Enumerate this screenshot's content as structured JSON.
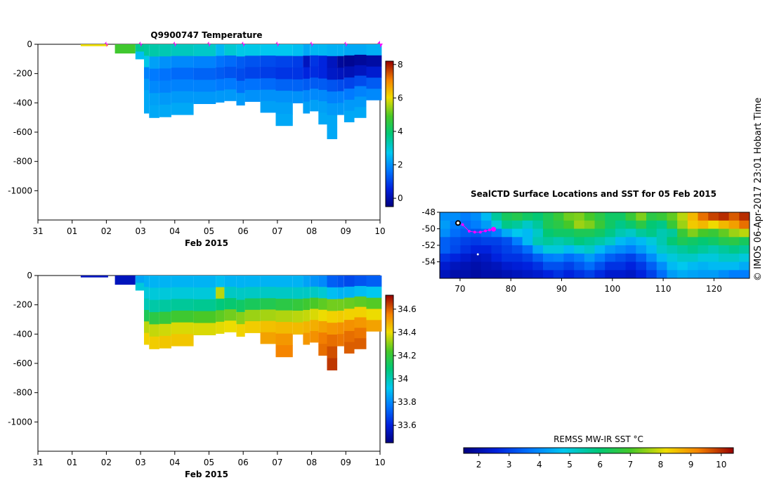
{
  "side_label": "© IMOS 06-Apr-2017 23:01 Hobart Time",
  "chart_data": [
    {
      "type": "heatmap",
      "id": "temperature",
      "title": "Q9900747  Temperature",
      "xlabel": "Feb 2015",
      "x_ticks": [
        "31",
        "01",
        "02",
        "03",
        "04",
        "05",
        "06",
        "07",
        "08",
        "09",
        "10"
      ],
      "y_ticks": [
        0,
        -200,
        -400,
        -600,
        -800,
        -1000
      ],
      "ylim": [
        -1200,
        0
      ],
      "xlim_days": [
        0,
        10
      ],
      "colorbar": {
        "ticks": [
          0,
          2,
          4,
          6,
          8
        ],
        "range": [
          -0.5,
          8.2
        ]
      },
      "profile_marker_days": [
        2,
        3,
        4,
        5,
        6,
        7,
        8,
        9,
        10
      ],
      "profiles": [
        {
          "start": 1.25,
          "end": 2.05,
          "depth": 10,
          "values": [
            6.0
          ]
        },
        {
          "start": 2.25,
          "end": 2.85,
          "depth": 60,
          "values": [
            4.8
          ]
        },
        {
          "start": 2.85,
          "end": 3.1,
          "depth": 100,
          "values": [
            3.6,
            2.6
          ]
        },
        {
          "start": 3.1,
          "end": 3.25,
          "depth": 470,
          "values": [
            3.5,
            2.8,
            1.8,
            2.1,
            2.3,
            2.3
          ]
        },
        {
          "start": 3.25,
          "end": 3.55,
          "depth": 500,
          "values": [
            3.4,
            2.2,
            1.7,
            1.9,
            2.2,
            2.3
          ]
        },
        {
          "start": 3.55,
          "end": 3.9,
          "depth": 495,
          "values": [
            3.3,
            2.0,
            1.6,
            1.8,
            2.1,
            2.3
          ]
        },
        {
          "start": 3.9,
          "end": 4.55,
          "depth": 480,
          "values": [
            3.2,
            1.9,
            1.5,
            1.8,
            2.1,
            2.3
          ]
        },
        {
          "start": 4.55,
          "end": 5.2,
          "depth": 405,
          "values": [
            3.1,
            1.8,
            1.4,
            1.8,
            2.1
          ]
        },
        {
          "start": 5.2,
          "end": 5.45,
          "depth": 395,
          "values": [
            2.5,
            1.6,
            1.3,
            1.7,
            2.1
          ]
        },
        {
          "start": 5.45,
          "end": 5.8,
          "depth": 385,
          "values": [
            3.0,
            1.5,
            1.2,
            1.7,
            2.1
          ]
        },
        {
          "start": 5.8,
          "end": 6.05,
          "depth": 415,
          "values": [
            2.8,
            1.3,
            1.1,
            1.6,
            2.1
          ]
        },
        {
          "start": 6.05,
          "end": 6.5,
          "depth": 390,
          "values": [
            2.8,
            1.2,
            1.0,
            1.6,
            2.0
          ]
        },
        {
          "start": 6.5,
          "end": 6.95,
          "depth": 465,
          "values": [
            2.7,
            1.1,
            0.9,
            1.5,
            2.0,
            2.2
          ]
        },
        {
          "start": 6.95,
          "end": 7.45,
          "depth": 555,
          "values": [
            2.7,
            1.0,
            0.8,
            1.4,
            2.0,
            2.2,
            2.3
          ]
        },
        {
          "start": 7.45,
          "end": 7.75,
          "depth": 400,
          "values": [
            2.6,
            0.9,
            0.8,
            1.4,
            2.0
          ]
        },
        {
          "start": 7.75,
          "end": 7.95,
          "depth": 470,
          "values": [
            2.3,
            0.2,
            0.6,
            1.3,
            1.9,
            2.2
          ]
        },
        {
          "start": 7.95,
          "end": 8.2,
          "depth": 455,
          "values": [
            2.5,
            0.8,
            0.7,
            1.3,
            1.9,
            2.2
          ]
        },
        {
          "start": 8.2,
          "end": 8.45,
          "depth": 545,
          "values": [
            2.5,
            0.6,
            0.6,
            1.3,
            1.9,
            2.2,
            2.3
          ]
        },
        {
          "start": 8.45,
          "end": 8.75,
          "depth": 645,
          "values": [
            2.4,
            0.2,
            0.3,
            1.2,
            1.8,
            2.1,
            2.3,
            2.3
          ]
        },
        {
          "start": 8.75,
          "end": 8.95,
          "depth": 480,
          "values": [
            2.4,
            -0.2,
            0.2,
            1.1,
            1.8,
            2.1
          ]
        },
        {
          "start": 8.95,
          "end": 9.25,
          "depth": 530,
          "values": [
            2.3,
            -0.3,
            0.1,
            1.0,
            1.7,
            2.1,
            2.3
          ]
        },
        {
          "start": 9.25,
          "end": 9.6,
          "depth": 500,
          "values": [
            2.3,
            -0.2,
            0.2,
            1.1,
            1.8,
            2.1,
            2.3
          ]
        },
        {
          "start": 9.6,
          "end": 10.05,
          "depth": 380,
          "values": [
            2.4,
            -0.1,
            0.4,
            1.3,
            1.9
          ]
        }
      ]
    },
    {
      "type": "heatmap",
      "id": "salinity",
      "title": "",
      "xlabel": "Feb 2015",
      "x_ticks": [
        "31",
        "01",
        "02",
        "03",
        "04",
        "05",
        "06",
        "07",
        "08",
        "09",
        "10"
      ],
      "y_ticks": [
        0,
        -200,
        -400,
        -600,
        -800,
        -1000
      ],
      "ylim": [
        -1200,
        0
      ],
      "xlim_days": [
        0,
        10
      ],
      "colorbar": {
        "ticks": [
          33.6,
          33.8,
          34,
          34.2,
          34.4,
          34.6
        ],
        "range": [
          33.45,
          34.72
        ]
      },
      "profiles": [
        {
          "start": 1.25,
          "end": 2.05,
          "depth": 10,
          "values": [
            33.55
          ]
        },
        {
          "start": 2.25,
          "end": 2.85,
          "depth": 60,
          "values": [
            33.55
          ]
        },
        {
          "start": 2.85,
          "end": 3.1,
          "depth": 100,
          "values": [
            33.85,
            33.95
          ]
        },
        {
          "start": 3.1,
          "end": 3.25,
          "depth": 470,
          "values": [
            33.87,
            33.95,
            34.0,
            34.15,
            34.35,
            34.42
          ]
        },
        {
          "start": 3.25,
          "end": 3.55,
          "depth": 500,
          "values": [
            33.88,
            33.95,
            34.02,
            34.18,
            34.36,
            34.43
          ]
        },
        {
          "start": 3.55,
          "end": 3.9,
          "depth": 495,
          "values": [
            33.88,
            33.95,
            34.03,
            34.2,
            34.37,
            34.44
          ]
        },
        {
          "start": 3.9,
          "end": 4.55,
          "depth": 480,
          "values": [
            33.88,
            33.95,
            34.04,
            34.22,
            34.38,
            34.44
          ]
        },
        {
          "start": 4.55,
          "end": 5.2,
          "depth": 405,
          "values": [
            33.88,
            33.95,
            34.05,
            34.24,
            34.38
          ]
        },
        {
          "start": 5.2,
          "end": 5.45,
          "depth": 395,
          "values": [
            33.9,
            34.35,
            34.08,
            34.26,
            34.39
          ]
        },
        {
          "start": 5.45,
          "end": 5.8,
          "depth": 385,
          "values": [
            33.88,
            33.98,
            34.1,
            34.28,
            34.4
          ]
        },
        {
          "start": 5.8,
          "end": 6.05,
          "depth": 415,
          "values": [
            33.88,
            33.98,
            34.12,
            34.3,
            34.42
          ]
        },
        {
          "start": 6.05,
          "end": 6.5,
          "depth": 390,
          "values": [
            33.88,
            33.98,
            34.14,
            34.32,
            34.43
          ]
        },
        {
          "start": 6.5,
          "end": 6.95,
          "depth": 465,
          "values": [
            33.88,
            33.98,
            34.16,
            34.33,
            34.45,
            34.5
          ]
        },
        {
          "start": 6.95,
          "end": 7.45,
          "depth": 555,
          "values": [
            33.88,
            33.98,
            34.18,
            34.34,
            34.46,
            34.52,
            34.55
          ]
        },
        {
          "start": 7.45,
          "end": 7.75,
          "depth": 400,
          "values": [
            33.88,
            33.98,
            34.2,
            34.35,
            34.46
          ]
        },
        {
          "start": 7.75,
          "end": 7.95,
          "depth": 470,
          "values": [
            33.85,
            33.98,
            34.22,
            34.36,
            34.47,
            34.52
          ]
        },
        {
          "start": 7.95,
          "end": 8.2,
          "depth": 455,
          "values": [
            33.82,
            33.98,
            34.24,
            34.38,
            34.48,
            34.53
          ]
        },
        {
          "start": 8.2,
          "end": 8.45,
          "depth": 545,
          "values": [
            33.8,
            33.96,
            34.26,
            34.4,
            34.5,
            34.56,
            34.58
          ]
        },
        {
          "start": 8.45,
          "end": 8.75,
          "depth": 645,
          "values": [
            33.72,
            33.9,
            34.28,
            34.42,
            34.52,
            34.58,
            34.62,
            34.65
          ]
        },
        {
          "start": 8.75,
          "end": 8.95,
          "depth": 480,
          "values": [
            33.7,
            33.88,
            34.28,
            34.43,
            34.53,
            34.57
          ]
        },
        {
          "start": 8.95,
          "end": 9.25,
          "depth": 530,
          "values": [
            33.68,
            33.88,
            34.27,
            34.42,
            34.53,
            34.58,
            34.6
          ]
        },
        {
          "start": 9.25,
          "end": 9.6,
          "depth": 500,
          "values": [
            33.7,
            33.9,
            34.26,
            34.42,
            34.52,
            34.57,
            34.6
          ]
        },
        {
          "start": 9.6,
          "end": 10.05,
          "depth": 380,
          "values": [
            33.72,
            33.92,
            34.25,
            34.4,
            34.5
          ]
        }
      ]
    },
    {
      "type": "map",
      "id": "sst-map",
      "title": "SealCTD Surface Locations and SST for 05 Feb 2015",
      "lon_ticks": [
        70,
        80,
        90,
        100,
        110,
        120
      ],
      "lat_ticks": [
        -48,
        -50,
        -52,
        -54
      ],
      "lon_range": [
        66,
        127
      ],
      "lat_range": [
        -56,
        -48
      ],
      "track": [
        [
          70.5,
          -49.5
        ],
        [
          71.8,
          -50.3
        ],
        [
          72.9,
          -50.4
        ],
        [
          74,
          -50.4
        ],
        [
          75,
          -50.25
        ],
        [
          75.8,
          -50.15
        ],
        [
          76.6,
          -50.05
        ]
      ],
      "sst_grid": [
        [
          4,
          4,
          3.8,
          4,
          4.6,
          5.6,
          6.3,
          6.5,
          6.2,
          6,
          6.4,
          6.8,
          7.3,
          7.4,
          7,
          6.6,
          6.2,
          6.2,
          6.8,
          7.4,
          6.6,
          6.8,
          7.2,
          7.8,
          8.6,
          9.4,
          9.8,
          10,
          9.6,
          10
        ],
        [
          4.2,
          3.8,
          3.6,
          3.8,
          4.2,
          5,
          5.8,
          5.6,
          5.2,
          5.6,
          6.4,
          6.6,
          7,
          7.6,
          7.4,
          6.8,
          6.2,
          5.8,
          6.1,
          6.6,
          6,
          5.8,
          6.8,
          7.6,
          8.4,
          8.6,
          8.2,
          8.6,
          8.9,
          9.4
        ],
        [
          4,
          3.6,
          3.4,
          3.3,
          3.5,
          3.8,
          4.4,
          4.8,
          4.6,
          5.2,
          6,
          6.2,
          6.2,
          6.4,
          6.4,
          6.2,
          5.8,
          5.4,
          5.2,
          5.6,
          5.8,
          5.4,
          5.6,
          6.8,
          7.4,
          7,
          6.8,
          7.2,
          7.6,
          7.8
        ],
        [
          3.4,
          3.2,
          3,
          2.9,
          3,
          3,
          3.2,
          3.8,
          4.6,
          5.4,
          5.6,
          5.4,
          5.6,
          5.9,
          5.7,
          5.5,
          5.2,
          4.6,
          4.4,
          4.6,
          5,
          5.4,
          6,
          6.4,
          6.2,
          6,
          6.2,
          6.5,
          6.6,
          6.3
        ],
        [
          3.4,
          3.1,
          2.8,
          2.6,
          2.6,
          2.8,
          3,
          3.2,
          3.6,
          4.4,
          5,
          5,
          4.6,
          5,
          5.2,
          4.6,
          4.2,
          4,
          3.8,
          4.2,
          4.6,
          5.2,
          5.4,
          5.6,
          5.8,
          5.6,
          5.4,
          5.6,
          5.8,
          5.6
        ],
        [
          2.8,
          2.6,
          2.4,
          2.2,
          2.3,
          2.6,
          2.8,
          2.8,
          3,
          3.4,
          3.8,
          3.9,
          3.6,
          3.8,
          4.2,
          3.8,
          3.4,
          3.2,
          3,
          3.4,
          4,
          4.6,
          5,
          5.2,
          5.2,
          5,
          5,
          5.2,
          5.2,
          5
        ],
        [
          2.4,
          2.2,
          2.1,
          2,
          2.1,
          2.2,
          2.4,
          2.5,
          2.6,
          2.8,
          3.2,
          3.2,
          3,
          3.3,
          3.6,
          3.2,
          2.8,
          2.8,
          2.6,
          2.9,
          3.4,
          4,
          4.6,
          4.8,
          4.6,
          4.5,
          4.6,
          4.6,
          4.6,
          4.4
        ],
        [
          2.2,
          2,
          2,
          1.9,
          2,
          2,
          2.1,
          2.2,
          2.3,
          2.4,
          2.6,
          2.8,
          2.6,
          2.8,
          3,
          2.7,
          2.4,
          2.4,
          2.3,
          2.6,
          3,
          3.6,
          4.2,
          4.4,
          4.3,
          4.2,
          4.2,
          4,
          3.8,
          3.8
        ]
      ],
      "colorbar": {
        "label": "REMSS MW-IR SST °C",
        "ticks": [
          2,
          3,
          4,
          5,
          6,
          7,
          8,
          9,
          10
        ],
        "range": [
          1.5,
          10.4
        ]
      }
    }
  ]
}
